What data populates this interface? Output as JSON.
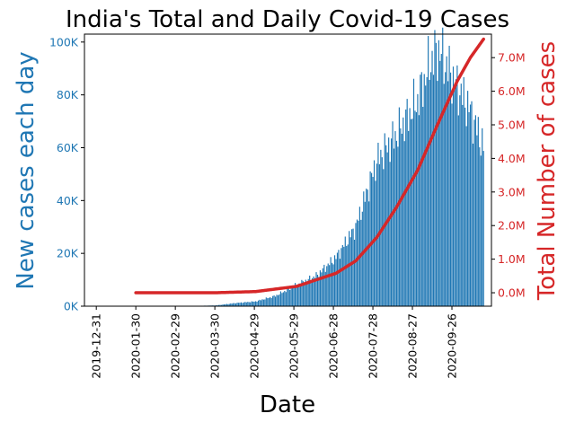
{
  "chart_data": {
    "type": "bar+line",
    "title": "India's Total and Daily Covid-19 Cases",
    "xlabel": "Date",
    "ylabel_left": "New cases each day",
    "ylabel_right": "Total Number of cases",
    "colors": {
      "bars": "#1f77b4",
      "line": "#d62728",
      "left_axis": "#1f77b4",
      "right_axis": "#d62728"
    },
    "x_range": [
      "2019-12-22",
      "2020-10-26"
    ],
    "x_ticks": [
      "2019-12-31",
      "2020-01-30",
      "2020-02-29",
      "2020-03-30",
      "2020-04-29",
      "2020-05-29",
      "2020-06-28",
      "2020-07-28",
      "2020-08-27",
      "2020-09-26"
    ],
    "ylim_left": [
      0,
      103000
    ],
    "y_ticks_left": [
      "0K",
      "20K",
      "40K",
      "60K",
      "80K",
      "100K"
    ],
    "y_tick_values_left": [
      0,
      20000,
      40000,
      60000,
      80000,
      100000
    ],
    "ylim_right": [
      -400000,
      7700000
    ],
    "y_ticks_right": [
      "0.0M",
      "1.0M",
      "2.0M",
      "3.0M",
      "4.0M",
      "5.0M",
      "6.0M",
      "7.0M"
    ],
    "y_tick_values_right": [
      0,
      1000000,
      2000000,
      3000000,
      4000000,
      5000000,
      6000000,
      7000000
    ],
    "daily_start": "2020-01-30",
    "daily_end": "2020-10-20",
    "daily_anchors": [
      {
        "date": "2020-01-30",
        "value": 0
      },
      {
        "date": "2020-03-15",
        "value": 100
      },
      {
        "date": "2020-03-31",
        "value": 300
      },
      {
        "date": "2020-04-15",
        "value": 1200
      },
      {
        "date": "2020-04-30",
        "value": 1800
      },
      {
        "date": "2020-05-15",
        "value": 3900
      },
      {
        "date": "2020-05-31",
        "value": 8000
      },
      {
        "date": "2020-06-15",
        "value": 11500
      },
      {
        "date": "2020-06-30",
        "value": 18500
      },
      {
        "date": "2020-07-15",
        "value": 30000
      },
      {
        "date": "2020-07-31",
        "value": 55000
      },
      {
        "date": "2020-08-15",
        "value": 65000
      },
      {
        "date": "2020-08-31",
        "value": 78000
      },
      {
        "date": "2020-09-10",
        "value": 93000
      },
      {
        "date": "2020-09-16",
        "value": 97000
      },
      {
        "date": "2020-09-30",
        "value": 83000
      },
      {
        "date": "2020-10-10",
        "value": 74000
      },
      {
        "date": "2020-10-20",
        "value": 60000
      }
    ],
    "cumulative_anchors": [
      {
        "date": "2020-01-30",
        "value": 0
      },
      {
        "date": "2020-03-31",
        "value": 1500
      },
      {
        "date": "2020-04-30",
        "value": 35000
      },
      {
        "date": "2020-05-31",
        "value": 190000
      },
      {
        "date": "2020-06-30",
        "value": 580000
      },
      {
        "date": "2020-07-15",
        "value": 950000
      },
      {
        "date": "2020-07-31",
        "value": 1650000
      },
      {
        "date": "2020-08-15",
        "value": 2550000
      },
      {
        "date": "2020-08-31",
        "value": 3650000
      },
      {
        "date": "2020-09-15",
        "value": 5000000
      },
      {
        "date": "2020-09-30",
        "value": 6300000
      },
      {
        "date": "2020-10-10",
        "value": 7000000
      },
      {
        "date": "2020-10-20",
        "value": 7550000
      }
    ]
  }
}
